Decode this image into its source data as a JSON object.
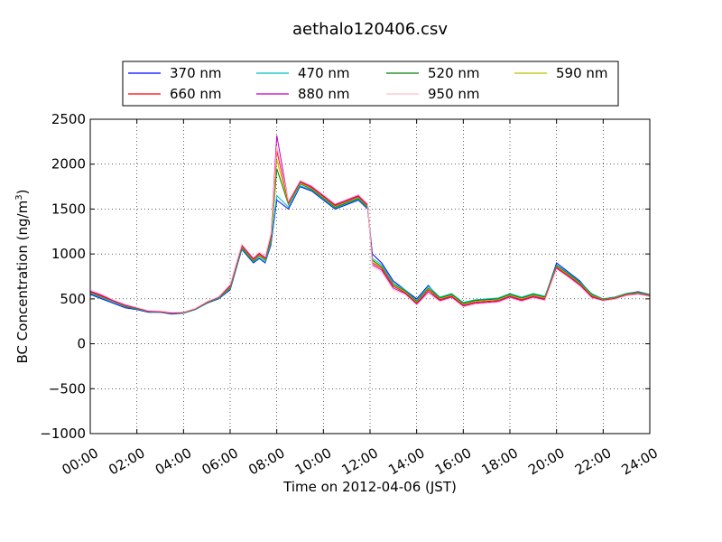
{
  "chart_data": {
    "type": "line",
    "title": "aethalo120406.csv",
    "xlabel": "Time on 2012-04-06 (JST)",
    "ylabel": "BC Concentration (ng/m",
    "ylabel_sup": "3",
    "ylabel_end": ")",
    "xlim": [
      0,
      24
    ],
    "ylim": [
      -1000,
      2500
    ],
    "x_ticks": [
      0,
      2,
      4,
      6,
      8,
      10,
      12,
      14,
      16,
      18,
      20,
      22,
      24
    ],
    "x_tick_labels": [
      "00:00",
      "02:00",
      "04:00",
      "06:00",
      "08:00",
      "10:00",
      "12:00",
      "14:00",
      "16:00",
      "18:00",
      "20:00",
      "22:00",
      "24:00"
    ],
    "y_ticks": [
      -1000,
      -500,
      0,
      500,
      1000,
      1500,
      2000,
      2500
    ],
    "y_tick_labels": [
      "−1000",
      "−500",
      "0",
      "500",
      "1000",
      "1500",
      "2000",
      "2500"
    ],
    "grid": true,
    "legend_position": "top-center",
    "x": [
      0.0,
      0.5,
      1.0,
      1.5,
      2.0,
      2.5,
      3.0,
      3.5,
      4.0,
      4.5,
      5.0,
      5.5,
      6.0,
      6.5,
      7.0,
      7.25,
      7.5,
      7.75,
      8.0,
      8.5,
      9.0,
      9.5,
      10.0,
      10.5,
      11.0,
      11.5,
      11.9,
      12.1,
      12.5,
      13.0,
      13.5,
      14.0,
      14.5,
      15.0,
      15.5,
      16.0,
      16.5,
      17.0,
      17.5,
      18.0,
      18.5,
      19.0,
      19.5,
      20.0,
      20.5,
      21.0,
      21.5,
      22.0,
      22.5,
      23.0,
      23.5,
      24.0
    ],
    "series": [
      {
        "name": "370 nm",
        "color": "#0000ff",
        "values": [
          550,
          500,
          450,
          400,
          380,
          350,
          350,
          330,
          340,
          380,
          450,
          500,
          600,
          1050,
          900,
          950,
          900,
          1100,
          1600,
          1500,
          1750,
          1700,
          1600,
          1500,
          1550,
          1600,
          1500,
          1000,
          900,
          700,
          600,
          500,
          650,
          500,
          550,
          450,
          480,
          500,
          500,
          550,
          500,
          550,
          520,
          900,
          800,
          700,
          550,
          500,
          520,
          560,
          580,
          550
        ]
      },
      {
        "name": "470 nm",
        "color": "#00bfbf",
        "values": [
          560,
          510,
          460,
          410,
          385,
          355,
          352,
          335,
          342,
          382,
          452,
          505,
          610,
          1060,
          910,
          960,
          910,
          1120,
          1650,
          1520,
          1760,
          1710,
          1610,
          1510,
          1560,
          1610,
          1510,
          950,
          880,
          680,
          600,
          480,
          640,
          520,
          560,
          460,
          490,
          500,
          510,
          560,
          520,
          560,
          530,
          880,
          790,
          690,
          560,
          500,
          520,
          560,
          575,
          550
        ]
      },
      {
        "name": "520 nm",
        "color": "#008000",
        "values": [
          570,
          520,
          470,
          415,
          390,
          360,
          355,
          340,
          345,
          385,
          455,
          510,
          620,
          1070,
          920,
          980,
          930,
          1150,
          1950,
          1550,
          1780,
          1720,
          1620,
          1520,
          1570,
          1620,
          1520,
          930,
          860,
          660,
          590,
          470,
          620,
          510,
          550,
          450,
          480,
          490,
          500,
          550,
          510,
          550,
          520,
          870,
          780,
          680,
          550,
          495,
          515,
          555,
          570,
          545
        ]
      },
      {
        "name": "590 nm",
        "color": "#bfbf00",
        "values": [
          575,
          525,
          470,
          420,
          395,
          360,
          355,
          340,
          348,
          388,
          460,
          515,
          630,
          1080,
          930,
          990,
          940,
          1170,
          2050,
          1560,
          1790,
          1730,
          1630,
          1530,
          1580,
          1630,
          1530,
          920,
          850,
          650,
          580,
          460,
          610,
          500,
          540,
          440,
          470,
          480,
          490,
          540,
          500,
          540,
          510,
          860,
          770,
          670,
          540,
          490,
          510,
          550,
          565,
          540
        ]
      },
      {
        "name": "660 nm",
        "color": "#ff0000",
        "values": [
          580,
          530,
          475,
          425,
          398,
          362,
          357,
          342,
          350,
          390,
          462,
          518,
          640,
          1090,
          940,
          1000,
          950,
          1190,
          2150,
          1570,
          1800,
          1740,
          1640,
          1540,
          1590,
          1640,
          1540,
          900,
          840,
          640,
          570,
          450,
          600,
          490,
          530,
          430,
          460,
          470,
          480,
          530,
          490,
          530,
          500,
          850,
          760,
          660,
          530,
          485,
          505,
          545,
          560,
          535
        ]
      },
      {
        "name": "880 nm",
        "color": "#bf00bf",
        "values": [
          585,
          540,
          480,
          430,
          400,
          365,
          360,
          345,
          352,
          392,
          465,
          520,
          650,
          1100,
          950,
          1010,
          960,
          1210,
          2320,
          1580,
          1810,
          1750,
          1650,
          1550,
          1600,
          1650,
          1550,
          880,
          820,
          620,
          560,
          440,
          580,
          480,
          520,
          420,
          450,
          460,
          470,
          520,
          480,
          520,
          490,
          840,
          750,
          650,
          520,
          480,
          500,
          540,
          555,
          530
        ]
      },
      {
        "name": "950 nm",
        "color": "#ffc0cb",
        "values": [
          600,
          550,
          490,
          440,
          405,
          370,
          365,
          350,
          355,
          395,
          470,
          525,
          660,
          1110,
          960,
          1020,
          970,
          1230,
          2200,
          1590,
          1820,
          1760,
          1660,
          1560,
          1610,
          1660,
          1560,
          860,
          800,
          600,
          550,
          430,
          560,
          470,
          510,
          410,
          440,
          450,
          460,
          510,
          470,
          510,
          480,
          830,
          740,
          640,
          510,
          475,
          495,
          535,
          550,
          525
        ]
      }
    ]
  }
}
